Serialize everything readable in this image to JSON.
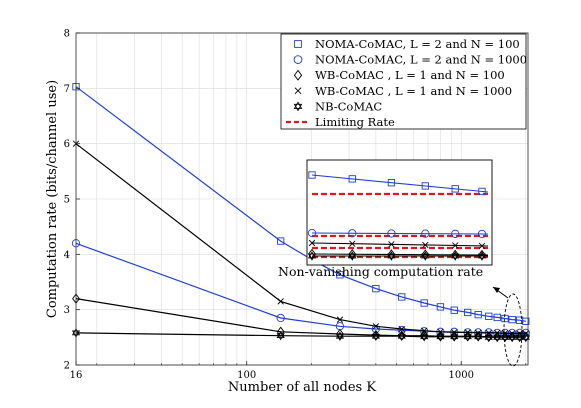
{
  "chart_data": {
    "type": "line",
    "xlabel": "Number of all nodes K",
    "ylabel": "Computation rate (bits/channel use)",
    "xscale": "log",
    "xlim": [
      16,
      2048
    ],
    "ylim": [
      2,
      8
    ],
    "xticks": [
      16,
      100,
      1000
    ],
    "xtick_labels": [
      "16",
      "100",
      "1000"
    ],
    "yticks": [
      2,
      3,
      4,
      5,
      6,
      7,
      8
    ],
    "grid": true,
    "legend_position": "top-right",
    "annotation": "Non-vanishing computation rate",
    "series": [
      {
        "name": "NOMA-CoMAC, L = 2 and N = 100",
        "color": "#1f3fd8",
        "marker": "square",
        "x": [
          16,
          144,
          200,
          272,
          400,
          528,
          672,
          800,
          928,
          1072,
          1200,
          1344,
          1472,
          1600,
          1728,
          1872,
          2000
        ],
        "y": [
          7.03,
          4.24,
          3.91,
          3.63,
          3.38,
          3.23,
          3.12,
          3.05,
          2.99,
          2.95,
          2.91,
          2.88,
          2.86,
          2.84,
          2.82,
          2.81,
          2.79
        ]
      },
      {
        "name": "NOMA-CoMAC, L = 2 and N = 1000",
        "color": "#1f3fd8",
        "marker": "circle",
        "x": [
          16,
          144,
          272,
          400,
          528,
          672,
          800,
          928,
          1072,
          1200,
          1344,
          1472,
          1600,
          1728,
          1872,
          2000
        ],
        "y": [
          4.2,
          2.85,
          2.7,
          2.65,
          2.63,
          2.61,
          2.6,
          2.6,
          2.59,
          2.59,
          2.59,
          2.58,
          2.58,
          2.58,
          2.58,
          2.58
        ]
      },
      {
        "name": "WB-CoMAC , L = 1 and N = 100",
        "color": "#000000",
        "marker": "diamond",
        "x": [
          16,
          144,
          272,
          400,
          528,
          672,
          800,
          928,
          1072,
          1200,
          1344,
          1472,
          1600,
          1728,
          1872,
          2000
        ],
        "y": [
          3.2,
          2.6,
          2.56,
          2.54,
          2.53,
          2.53,
          2.52,
          2.52,
          2.52,
          2.52,
          2.51,
          2.51,
          2.51,
          2.51,
          2.51,
          2.51
        ]
      },
      {
        "name": "WB-CoMAC , L = 1 and N = 1000",
        "color": "#000000",
        "marker": "x",
        "x": [
          16,
          144,
          272,
          400,
          528,
          672,
          800,
          928,
          1072,
          1200,
          1344,
          1472,
          1600,
          1728,
          1872,
          2000
        ],
        "y": [
          6.0,
          3.15,
          2.82,
          2.7,
          2.65,
          2.62,
          2.6,
          2.59,
          2.59,
          2.58,
          2.58,
          2.58,
          2.57,
          2.57,
          2.57,
          2.57
        ]
      },
      {
        "name": "NB-CoMAC",
        "color": "#000000",
        "marker": "hexagram",
        "x": [
          16,
          144,
          272,
          400,
          528,
          672,
          800,
          928,
          1072,
          1200,
          1344,
          1472,
          1600,
          1728,
          1872,
          2000
        ],
        "y": [
          2.58,
          2.53,
          2.52,
          2.52,
          2.52,
          2.51,
          2.51,
          2.51,
          2.51,
          2.51,
          2.5,
          2.5,
          2.5,
          2.5,
          2.5,
          2.5
        ]
      },
      {
        "name": "Limiting Rate",
        "color": "#e8141c",
        "marker": "none",
        "dashed": true,
        "x": [],
        "y": []
      }
    ]
  }
}
